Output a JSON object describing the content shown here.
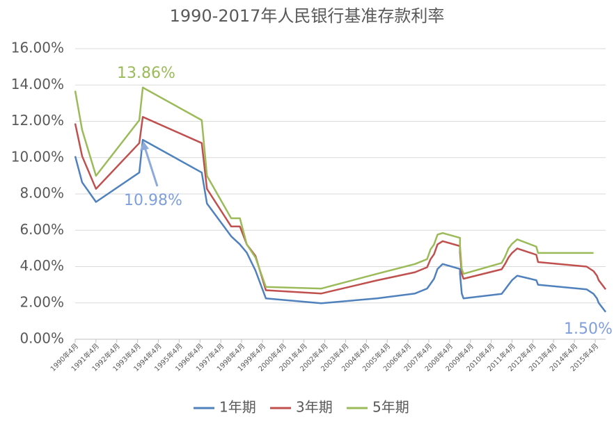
{
  "chart_data": {
    "type": "line",
    "title": "1990-2017年人民银行基准存款利率",
    "x": [
      "1990-04",
      "1990-08",
      "1991-04",
      "1993-05",
      "1993-07",
      "1996-05",
      "1996-08",
      "1997-10",
      "1998-03",
      "1998-07",
      "1998-12",
      "1999-06",
      "2002-02",
      "2004-10",
      "2006-08",
      "2007-03",
      "2007-05",
      "2007-07",
      "2007-08",
      "2007-09",
      "2007-12",
      "2008-10",
      "2008-10",
      "2008-11",
      "2008-12",
      "2010-10",
      "2010-12",
      "2011-02",
      "2011-04",
      "2011-07",
      "2012-06",
      "2012-07",
      "2014-11",
      "2015-03",
      "2015-05",
      "2015-06",
      "2015-08",
      "2015-10"
    ],
    "series": [
      {
        "name": "1年期",
        "color": "#4f81bd",
        "values": [
          10.08,
          8.64,
          7.56,
          9.18,
          10.98,
          9.18,
          7.47,
          5.67,
          5.22,
          4.77,
          3.78,
          2.25,
          1.98,
          2.25,
          2.52,
          2.79,
          3.06,
          3.33,
          3.6,
          3.87,
          4.14,
          3.87,
          3.6,
          2.52,
          2.25,
          2.5,
          2.75,
          3.0,
          3.25,
          3.5,
          3.25,
          3.0,
          2.75,
          2.5,
          2.25,
          2.0,
          1.75,
          1.5
        ]
      },
      {
        "name": "3年期",
        "color": "#c0504d",
        "values": [
          11.88,
          10.08,
          8.28,
          10.8,
          12.24,
          10.8,
          8.28,
          6.21,
          6.21,
          5.22,
          4.59,
          2.7,
          2.52,
          3.24,
          3.69,
          3.96,
          4.41,
          4.68,
          4.95,
          5.22,
          5.4,
          5.13,
          4.77,
          3.6,
          3.33,
          3.85,
          4.15,
          4.5,
          4.75,
          5.0,
          4.65,
          4.25,
          4.0,
          3.75,
          3.5,
          3.25,
          3.0,
          2.75
        ]
      },
      {
        "name": "5年期",
        "color": "#9bbb59",
        "values": [
          13.68,
          11.52,
          9.0,
          12.06,
          13.86,
          12.06,
          9.0,
          6.66,
          6.66,
          5.22,
          4.5,
          2.88,
          2.79,
          3.6,
          4.14,
          4.41,
          4.95,
          5.22,
          5.49,
          5.76,
          5.85,
          5.58,
          5.13,
          3.87,
          3.6,
          4.2,
          4.55,
          5.0,
          5.25,
          5.5,
          5.1,
          4.75,
          4.75,
          4.75,
          null,
          null,
          null,
          null
        ]
      }
    ],
    "xlim": [
      "1990-04",
      "2015-10"
    ],
    "xticks": [
      {
        "value": "1990-04",
        "label": "1990年4月"
      },
      {
        "value": "1991-04",
        "label": "1991年4月"
      },
      {
        "value": "1992-04",
        "label": "1992年4月"
      },
      {
        "value": "1993-04",
        "label": "1993年4月"
      },
      {
        "value": "1994-04",
        "label": "1994年4月"
      },
      {
        "value": "1995-04",
        "label": "1995年4月"
      },
      {
        "value": "1996-04",
        "label": "1996年4月"
      },
      {
        "value": "1997-04",
        "label": "1997年4月"
      },
      {
        "value": "1998-04",
        "label": "1998年4月"
      },
      {
        "value": "1999-04",
        "label": "1999年4月"
      },
      {
        "value": "2000-04",
        "label": "2000年4月"
      },
      {
        "value": "2001-04",
        "label": "2001年4月"
      },
      {
        "value": "2002-04",
        "label": "2002年4月"
      },
      {
        "value": "2003-04",
        "label": "2003年4月"
      },
      {
        "value": "2004-04",
        "label": "2004年4月"
      },
      {
        "value": "2005-04",
        "label": "2005年4月"
      },
      {
        "value": "2006-04",
        "label": "2006年4月"
      },
      {
        "value": "2007-04",
        "label": "2007年4月"
      },
      {
        "value": "2008-04",
        "label": "2008年4月"
      },
      {
        "value": "2009-04",
        "label": "2009年4月"
      },
      {
        "value": "2010-04",
        "label": "2010年4月"
      },
      {
        "value": "2011-04",
        "label": "2011年4月"
      },
      {
        "value": "2012-04",
        "label": "2012年4月"
      },
      {
        "value": "2013-04",
        "label": "2013年4月"
      },
      {
        "value": "2014-04",
        "label": "2014年4月"
      },
      {
        "value": "2015-04",
        "label": "2015年4月"
      }
    ],
    "ylim": [
      0,
      16
    ],
    "yticks": [
      {
        "value": 0,
        "label": "0.00%"
      },
      {
        "value": 2,
        "label": "2.00%"
      },
      {
        "value": 4,
        "label": "4.00%"
      },
      {
        "value": 6,
        "label": "6.00%"
      },
      {
        "value": 8,
        "label": "8.00%"
      },
      {
        "value": 10,
        "label": "10.00%"
      },
      {
        "value": 12,
        "label": "12.00%"
      },
      {
        "value": 14,
        "label": "14.00%"
      },
      {
        "value": 16,
        "label": "16.00%"
      }
    ],
    "grid": true,
    "legend": "bottom",
    "annotations": [
      {
        "text": "13.86%",
        "color": "#9bbb59"
      },
      {
        "text": "10.98%",
        "color": "#7f9fdc"
      },
      {
        "text": "1.50%",
        "color": "#7f9fdc"
      }
    ]
  }
}
